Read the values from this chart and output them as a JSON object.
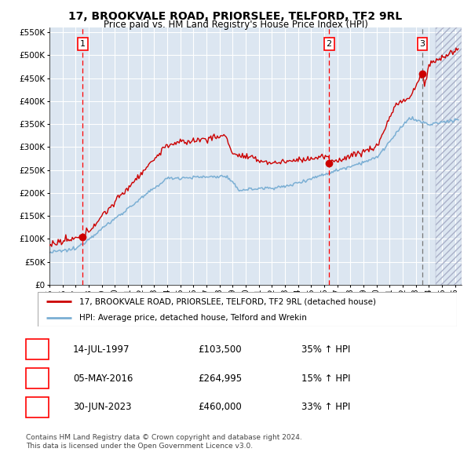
{
  "title": "17, BROOKVALE ROAD, PRIORSLEE, TELFORD, TF2 9RL",
  "subtitle": "Price paid vs. HM Land Registry's House Price Index (HPI)",
  "legend_line1": "17, BROOKVALE ROAD, PRIORSLEE, TELFORD, TF2 9RL (detached house)",
  "legend_line2": "HPI: Average price, detached house, Telford and Wrekin",
  "transactions": [
    {
      "num": "1",
      "date": "14-JUL-1997",
      "price": "£103,500",
      "hpi_pct": "35% ↑ HPI",
      "year": 1997.54,
      "value": 103500
    },
    {
      "num": "2",
      "date": "05-MAY-2016",
      "price": "£264,995",
      "hpi_pct": "15% ↑ HPI",
      "year": 2016.37,
      "value": 264995
    },
    {
      "num": "3",
      "date": "30-JUN-2023",
      "price": "£460,000",
      "hpi_pct": "33% ↑ HPI",
      "year": 2023.5,
      "value": 460000
    }
  ],
  "footer_line1": "Contains HM Land Registry data © Crown copyright and database right 2024.",
  "footer_line2": "This data is licensed under the Open Government Licence v3.0.",
  "red_line_color": "#cc0000",
  "blue_line_color": "#7bafd4",
  "bg_color": "#dce6f1",
  "grid_color": "#ffffff",
  "ylim": [
    0,
    560000
  ],
  "yticks": [
    0,
    50000,
    100000,
    150000,
    200000,
    250000,
    300000,
    350000,
    400000,
    450000,
    500000,
    550000
  ],
  "xlim_start": 1995.0,
  "xlim_end": 2026.5,
  "xticks": [
    1995,
    1996,
    1997,
    1998,
    1999,
    2000,
    2001,
    2002,
    2003,
    2004,
    2005,
    2006,
    2007,
    2008,
    2009,
    2010,
    2011,
    2012,
    2013,
    2014,
    2015,
    2016,
    2017,
    2018,
    2019,
    2020,
    2021,
    2022,
    2023,
    2024,
    2025,
    2026
  ],
  "hatch_start": 2024.5
}
